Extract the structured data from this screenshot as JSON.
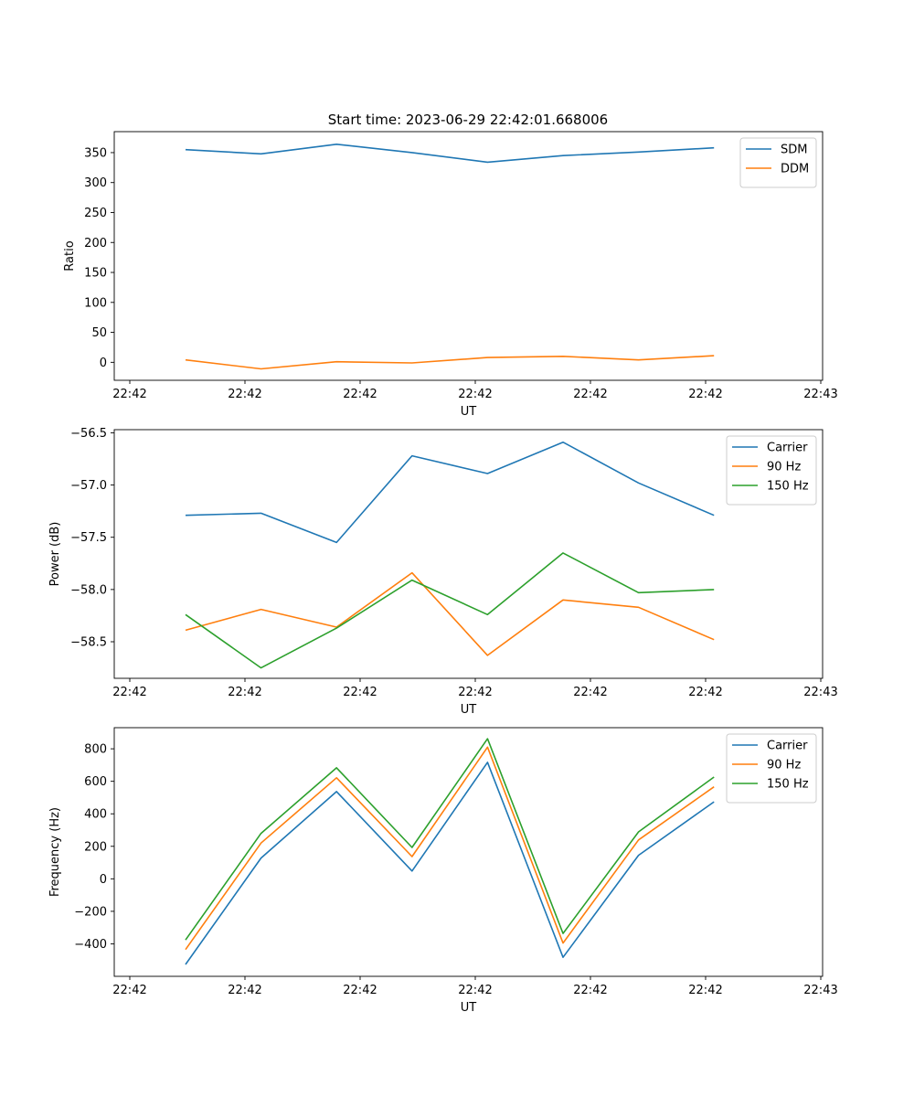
{
  "title": "Start time: 2023-06-29 22:42:01.668006",
  "chart_data": [
    {
      "type": "line",
      "xlabel": "UT",
      "ylabel": "Ratio",
      "x": [
        "22:42:01.668",
        "22:42:02.168",
        "22:42:02.668",
        "22:42:03.168",
        "22:42:03.668",
        "22:42:04.168",
        "22:42:04.668",
        "22:42:05.168"
      ],
      "xtick_labels": [
        "22:42",
        "22:42",
        "22:42",
        "22:42",
        "22:42",
        "22:42",
        "22:43"
      ],
      "yticks": [
        0,
        50,
        100,
        150,
        200,
        250,
        300,
        350
      ],
      "ylim": [
        -30,
        385
      ],
      "grid": false,
      "legend": "top-right",
      "series": [
        {
          "name": "SDM",
          "color": "#1f77b4",
          "values": [
            355,
            348,
            364,
            350,
            334,
            345,
            351,
            358
          ]
        },
        {
          "name": "DDM",
          "color": "#ff7f0e",
          "values": [
            4,
            -11,
            1,
            -1,
            8,
            10,
            4,
            11
          ]
        }
      ]
    },
    {
      "type": "line",
      "xlabel": "UT",
      "ylabel": "Power (dB)",
      "x": [
        "22:42:01.668",
        "22:42:02.168",
        "22:42:02.668",
        "22:42:03.168",
        "22:42:03.668",
        "22:42:04.168",
        "22:42:04.668",
        "22:42:05.168"
      ],
      "xtick_labels": [
        "22:42",
        "22:42",
        "22:42",
        "22:42",
        "22:42",
        "22:42",
        "22:43"
      ],
      "yticks": [
        -58.5,
        -58.0,
        -57.5,
        -57.0,
        -56.5
      ],
      "ytick_labels": [
        "−58.5",
        "−58.0",
        "−57.5",
        "−57.0",
        "−56.5"
      ],
      "ylim": [
        -58.85,
        -56.47
      ],
      "grid": false,
      "legend": "top-right",
      "series": [
        {
          "name": "Carrier",
          "color": "#1f77b4",
          "values": [
            -57.29,
            -57.27,
            -57.55,
            -56.72,
            -56.89,
            -56.59,
            -56.98,
            -57.29
          ]
        },
        {
          "name": "90 Hz",
          "color": "#ff7f0e",
          "values": [
            -58.39,
            -58.19,
            -58.36,
            -57.84,
            -58.63,
            -58.1,
            -58.17,
            -58.48
          ]
        },
        {
          "name": "150 Hz",
          "color": "#2ca02c",
          "values": [
            -58.24,
            -58.75,
            -58.37,
            -57.91,
            -58.24,
            -57.65,
            -58.03,
            -58.0
          ]
        }
      ]
    },
    {
      "type": "line",
      "xlabel": "UT",
      "ylabel": "Frequency (Hz)",
      "x": [
        "22:42:01.668",
        "22:42:02.168",
        "22:42:02.668",
        "22:42:03.168",
        "22:42:03.668",
        "22:42:04.168",
        "22:42:04.668",
        "22:42:05.168"
      ],
      "xtick_labels": [
        "22:42",
        "22:42",
        "22:42",
        "22:42",
        "22:42",
        "22:42",
        "22:43"
      ],
      "yticks": [
        -400,
        -200,
        0,
        200,
        400,
        600,
        800
      ],
      "ytick_labels": [
        "−400",
        "−200",
        "0",
        "200",
        "400",
        "600",
        "800"
      ],
      "ylim": [
        -600,
        930
      ],
      "grid": false,
      "legend": "top-right",
      "series": [
        {
          "name": "Carrier",
          "color": "#1f77b4",
          "values": [
            -527,
            128,
            537,
            48,
            717,
            -483,
            145,
            474
          ]
        },
        {
          "name": "90 Hz",
          "color": "#ff7f0e",
          "values": [
            -435,
            220,
            622,
            137,
            810,
            -395,
            239,
            566
          ]
        },
        {
          "name": "150 Hz",
          "color": "#2ca02c",
          "values": [
            -376,
            280,
            683,
            193,
            862,
            -336,
            289,
            626
          ]
        }
      ]
    }
  ]
}
